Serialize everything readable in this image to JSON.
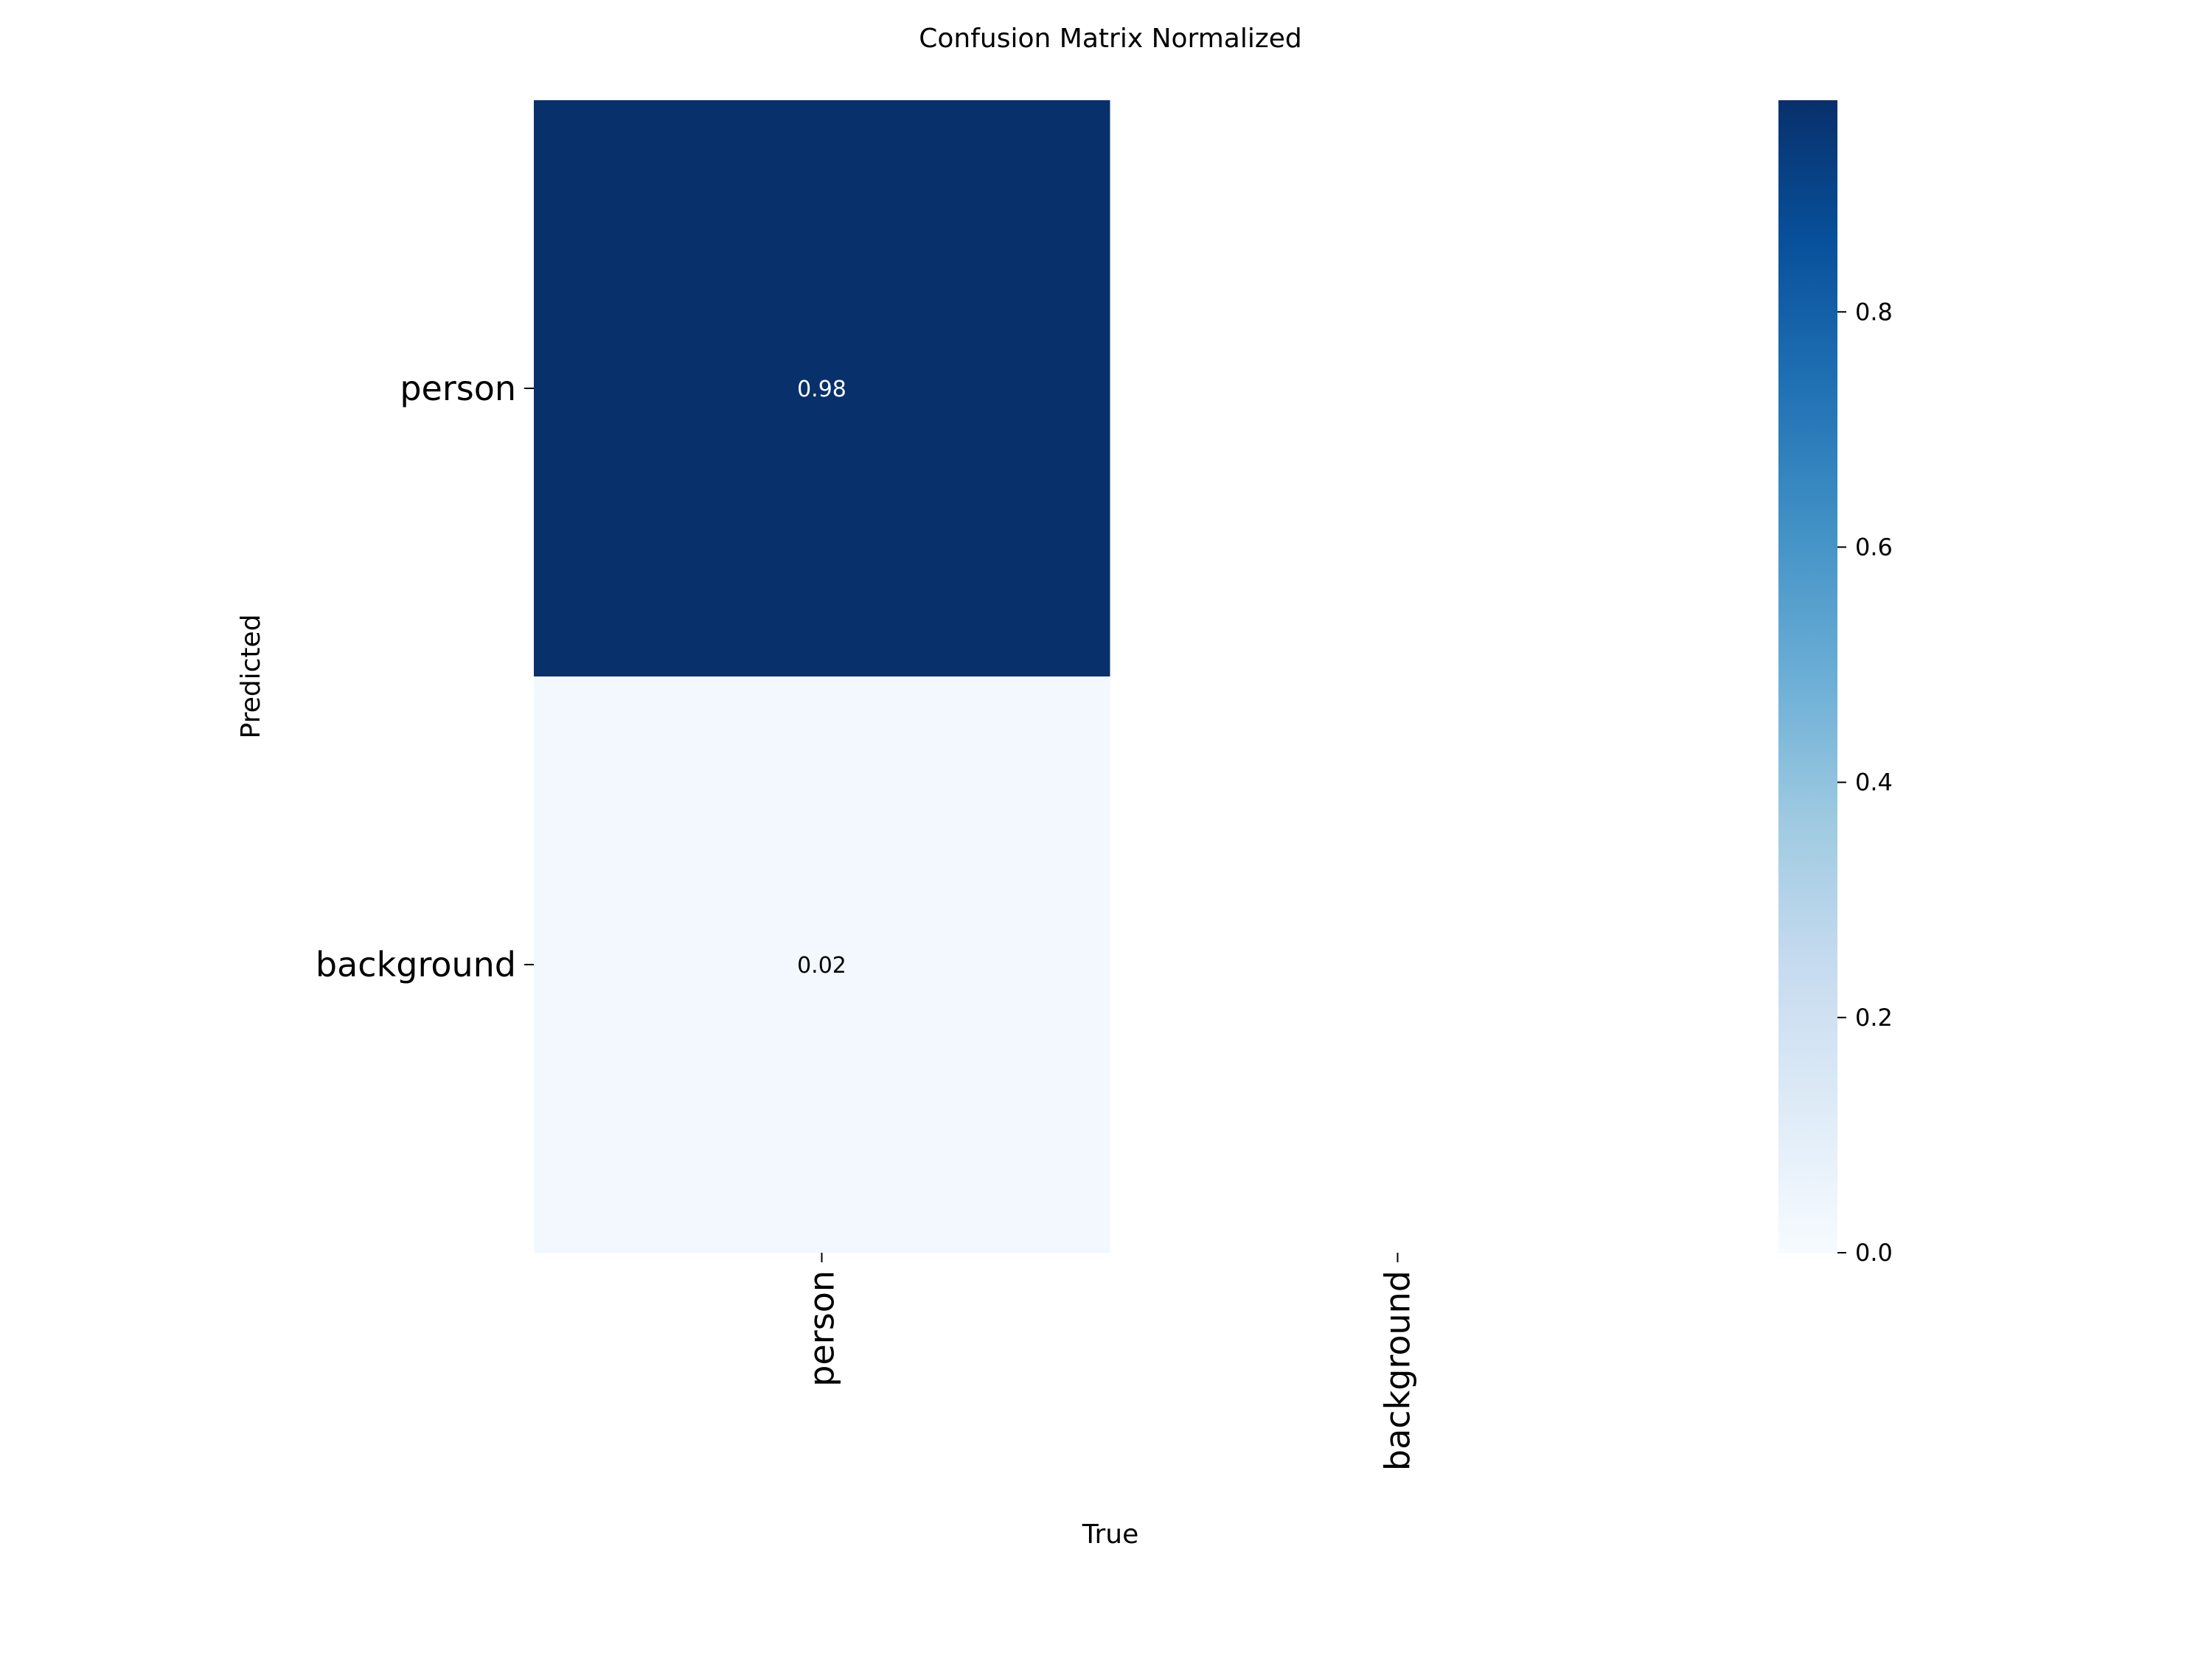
{
  "chart_data": {
    "type": "heatmap",
    "title": "Confusion Matrix Normalized",
    "xlabel": "True",
    "ylabel": "Predicted",
    "x_categories": [
      "person",
      "background"
    ],
    "y_categories": [
      "person",
      "background"
    ],
    "values": [
      [
        0.98,
        null
      ],
      [
        0.02,
        null
      ]
    ],
    "annotations": [
      [
        "0.98",
        ""
      ],
      [
        "0.02",
        ""
      ]
    ],
    "colormap": "Blues",
    "colorbar": {
      "range": [
        0,
        0.98
      ],
      "ticks": [
        0.0,
        0.2,
        0.4,
        0.6,
        0.8
      ],
      "tick_labels": [
        "0.0",
        "0.2",
        "0.4",
        "0.6",
        "0.8"
      ]
    },
    "grid": false,
    "legend": "none"
  }
}
